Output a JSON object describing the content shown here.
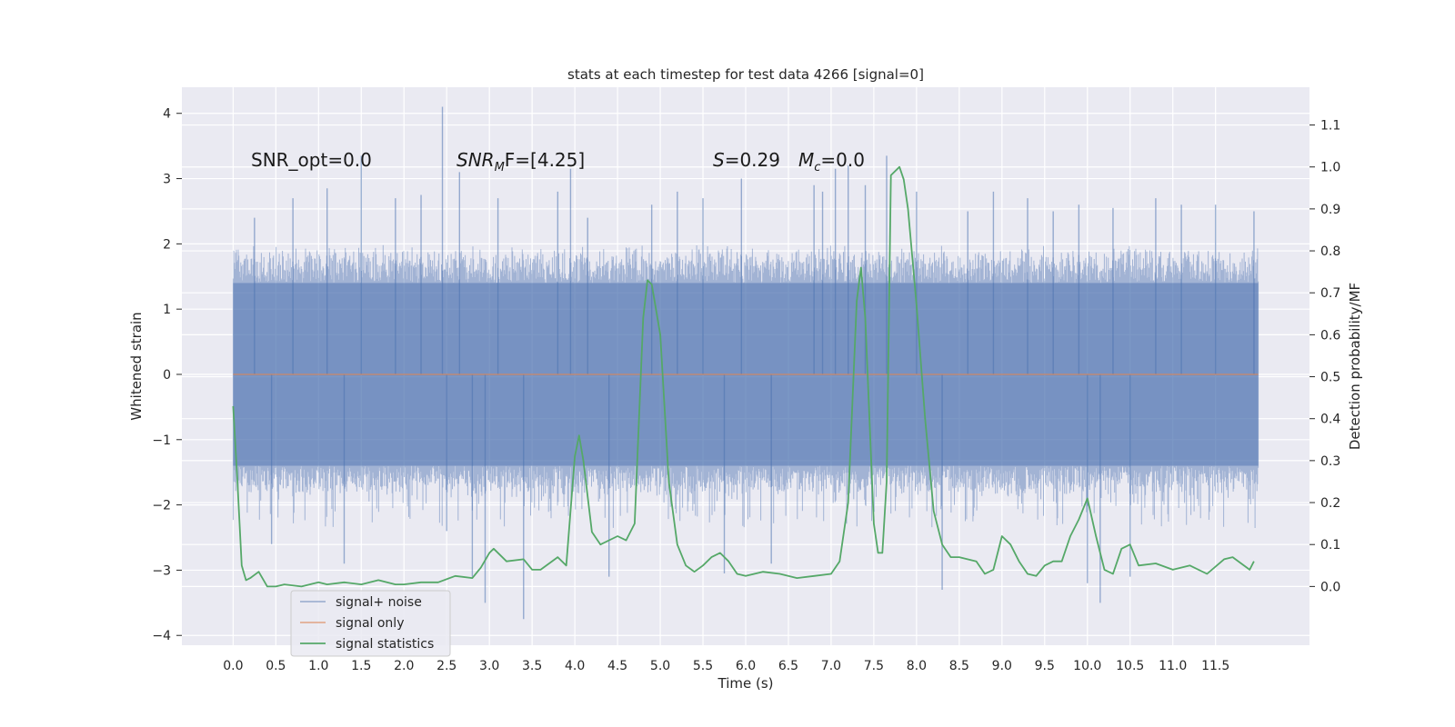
{
  "chart_data": {
    "type": "line",
    "title": "stats at each timestep for test data 4266 [signal=0]",
    "xlabel": "Time (s)",
    "ylabel": "Whitened strain",
    "y2label": "Detection probability/MF",
    "xlim": [
      -0.6,
      12.6
    ],
    "ylim": [
      -4.15,
      4.4
    ],
    "y2lim": [
      -0.14,
      1.19
    ],
    "xticks": [
      "0.0",
      "0.5",
      "1.0",
      "1.5",
      "2.0",
      "2.5",
      "3.0",
      "3.5",
      "4.0",
      "4.5",
      "5.0",
      "5.5",
      "6.0",
      "6.5",
      "7.0",
      "7.5",
      "8.0",
      "8.5",
      "9.0",
      "9.5",
      "10.0",
      "10.5",
      "11.0",
      "11.5"
    ],
    "yticks": [
      "4",
      "3",
      "2",
      "1",
      "0",
      "−1",
      "−2",
      "−3",
      "−4"
    ],
    "y2ticks": [
      "1.1",
      "1.0",
      "0.9",
      "0.8",
      "0.7",
      "0.6",
      "0.5",
      "0.4",
      "0.3",
      "0.2",
      "0.1",
      "0.0"
    ],
    "grid": true,
    "legend_position": "lower-left",
    "annotations": {
      "snr_opt": "SNR_opt=0.0",
      "snr_mf": "SNR",
      "snr_mf_sub": "M",
      "snr_mf_rest": "F=[4.25]",
      "s_stat": "S",
      "s_stat_rest": "=0.29",
      "mc": "M",
      "mc_sub": "c",
      "mc_rest": "=0.0"
    },
    "series": [
      {
        "name": "signal+ noise",
        "color": "#4c72b0",
        "description_stats": {
          "x_range": [
            0.0,
            12.0
          ],
          "typical_band": [
            -1.9,
            2.0
          ],
          "max_peak": 4.1,
          "min_peak": -3.75
        },
        "spikes": [
          [
            0.25,
            2.4
          ],
          [
            0.45,
            -2.6
          ],
          [
            0.7,
            2.7
          ],
          [
            1.1,
            2.85
          ],
          [
            1.3,
            -2.9
          ],
          [
            1.5,
            3.35
          ],
          [
            1.9,
            2.7
          ],
          [
            2.2,
            2.75
          ],
          [
            2.45,
            4.1
          ],
          [
            2.5,
            -2.4
          ],
          [
            2.65,
            3.1
          ],
          [
            2.8,
            -3.1
          ],
          [
            2.95,
            -3.5
          ],
          [
            3.1,
            2.7
          ],
          [
            3.4,
            -3.75
          ],
          [
            3.8,
            2.8
          ],
          [
            3.95,
            3.15
          ],
          [
            4.15,
            2.4
          ],
          [
            4.4,
            -3.1
          ],
          [
            4.9,
            2.6
          ],
          [
            5.2,
            2.8
          ],
          [
            5.5,
            2.7
          ],
          [
            5.75,
            -3.05
          ],
          [
            5.95,
            3.0
          ],
          [
            6.3,
            -2.9
          ],
          [
            6.8,
            2.9
          ],
          [
            6.9,
            2.8
          ],
          [
            7.05,
            3.15
          ],
          [
            7.2,
            3.2
          ],
          [
            7.4,
            2.9
          ],
          [
            7.65,
            3.35
          ],
          [
            8.0,
            2.8
          ],
          [
            8.3,
            -3.3
          ],
          [
            8.6,
            2.5
          ],
          [
            8.9,
            2.8
          ],
          [
            9.3,
            2.7
          ],
          [
            9.6,
            2.5
          ],
          [
            9.9,
            2.6
          ],
          [
            10.0,
            -3.2
          ],
          [
            10.15,
            -3.5
          ],
          [
            10.3,
            2.55
          ],
          [
            10.5,
            -3.1
          ],
          [
            10.8,
            2.7
          ],
          [
            11.1,
            2.6
          ],
          [
            11.5,
            2.6
          ],
          [
            11.95,
            2.5
          ]
        ]
      },
      {
        "name": "signal only",
        "color": "#dd8452",
        "x": [
          0.0,
          12.0
        ],
        "y": [
          0.0,
          0.0
        ]
      },
      {
        "name": "signal statistics",
        "color": "#55a868",
        "axis": "right",
        "x": [
          0.0,
          0.05,
          0.1,
          0.15,
          0.2,
          0.3,
          0.4,
          0.5,
          0.6,
          0.8,
          1.0,
          1.1,
          1.3,
          1.5,
          1.7,
          1.9,
          2.0,
          2.2,
          2.4,
          2.6,
          2.8,
          2.9,
          3.0,
          3.05,
          3.2,
          3.4,
          3.5,
          3.6,
          3.8,
          3.9,
          4.0,
          4.05,
          4.1,
          4.2,
          4.3,
          4.5,
          4.6,
          4.7,
          4.8,
          4.85,
          4.9,
          5.0,
          5.1,
          5.2,
          5.3,
          5.4,
          5.5,
          5.6,
          5.7,
          5.8,
          5.9,
          6.0,
          6.1,
          6.2,
          6.4,
          6.6,
          6.8,
          7.0,
          7.1,
          7.2,
          7.3,
          7.35,
          7.4,
          7.5,
          7.55,
          7.6,
          7.65,
          7.7,
          7.8,
          7.85,
          7.9,
          8.0,
          8.1,
          8.2,
          8.3,
          8.4,
          8.5,
          8.7,
          8.8,
          8.9,
          9.0,
          9.1,
          9.2,
          9.3,
          9.4,
          9.5,
          9.6,
          9.7,
          9.8,
          9.9,
          10.0,
          10.1,
          10.2,
          10.3,
          10.4,
          10.5,
          10.6,
          10.8,
          11.0,
          11.2,
          11.4,
          11.6,
          11.7,
          11.8,
          11.9,
          11.95
        ],
        "y": [
          0.43,
          0.25,
          0.05,
          0.015,
          0.02,
          0.035,
          0.0,
          0.0,
          0.005,
          0.0,
          0.01,
          0.005,
          0.01,
          0.005,
          0.015,
          0.005,
          0.005,
          0.01,
          0.01,
          0.025,
          0.02,
          0.045,
          0.08,
          0.09,
          0.06,
          0.065,
          0.04,
          0.04,
          0.07,
          0.05,
          0.31,
          0.36,
          0.3,
          0.13,
          0.1,
          0.12,
          0.11,
          0.15,
          0.64,
          0.73,
          0.72,
          0.6,
          0.25,
          0.1,
          0.05,
          0.035,
          0.05,
          0.07,
          0.08,
          0.06,
          0.03,
          0.025,
          0.03,
          0.035,
          0.03,
          0.02,
          0.025,
          0.03,
          0.06,
          0.2,
          0.68,
          0.76,
          0.64,
          0.15,
          0.08,
          0.08,
          0.25,
          0.98,
          1.0,
          0.97,
          0.9,
          0.67,
          0.4,
          0.18,
          0.1,
          0.07,
          0.07,
          0.06,
          0.03,
          0.04,
          0.12,
          0.1,
          0.06,
          0.03,
          0.025,
          0.05,
          0.06,
          0.06,
          0.12,
          0.16,
          0.21,
          0.12,
          0.04,
          0.03,
          0.09,
          0.1,
          0.05,
          0.055,
          0.04,
          0.05,
          0.03,
          0.065,
          0.07,
          0.055,
          0.04,
          0.06
        ]
      }
    ]
  }
}
